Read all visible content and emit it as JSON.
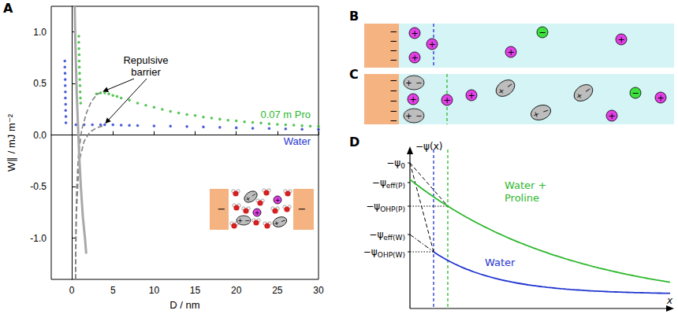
{
  "chart_data": {
    "type": "scatter",
    "xlabel": "D / nm",
    "ylabel": "W∥ / mJ m⁻²",
    "xlim": [
      -2.5,
      30
    ],
    "xticks": [
      0,
      5,
      10,
      15,
      20,
      25,
      30
    ],
    "ylim": [
      -1.4,
      1.25
    ],
    "yticks": [
      {
        "value": -1,
        "label": "-1.0"
      },
      {
        "value": -0.5,
        "label": "-0.5"
      },
      {
        "value": 0,
        "label": "0.0"
      },
      {
        "value": 0.5,
        "label": "0.5"
      },
      {
        "value": 1,
        "label": "1.0"
      }
    ],
    "grid": false,
    "annotations": [
      "Repulsive barrier"
    ],
    "series": [
      {
        "name": "0.07 m Pro",
        "color": "#2db82d",
        "type": "scatter",
        "marker": "circle",
        "values": [
          [
            0.85,
            0.96
          ],
          [
            0.85,
            0.9
          ],
          [
            0.87,
            0.84
          ],
          [
            0.9,
            0.78
          ],
          [
            0.9,
            0.72
          ],
          [
            0.92,
            0.66
          ],
          [
            0.95,
            0.6
          ],
          [
            0.97,
            0.54
          ],
          [
            1.0,
            0.48
          ],
          [
            1.02,
            0.42
          ],
          [
            1.05,
            0.36
          ],
          [
            1.08,
            0.31
          ],
          [
            3.0,
            0.4
          ],
          [
            3.5,
            0.41
          ],
          [
            4.0,
            0.41
          ],
          [
            4.5,
            0.4
          ],
          [
            5.0,
            0.385
          ],
          [
            5.5,
            0.375
          ],
          [
            6.0,
            0.36
          ],
          [
            7.0,
            0.34
          ],
          [
            8.0,
            0.31
          ],
          [
            9.0,
            0.29
          ],
          [
            10.0,
            0.27
          ],
          [
            11.0,
            0.25
          ],
          [
            12.0,
            0.23
          ],
          [
            13.0,
            0.215
          ],
          [
            14.0,
            0.2
          ],
          [
            15.0,
            0.19
          ],
          [
            16.0,
            0.175
          ],
          [
            17.0,
            0.165
          ],
          [
            18.0,
            0.155
          ],
          [
            19.0,
            0.145
          ],
          [
            20.0,
            0.138
          ],
          [
            21.0,
            0.13
          ],
          [
            22.0,
            0.123
          ],
          [
            23.0,
            0.117
          ],
          [
            24.0,
            0.11
          ],
          [
            25.0,
            0.105
          ],
          [
            26.0,
            0.1
          ],
          [
            27.0,
            0.096
          ],
          [
            28.0,
            0.092
          ],
          [
            29.0,
            0.088
          ],
          [
            30.0,
            0.085
          ]
        ]
      },
      {
        "name": "Water",
        "color": "#1f35d0",
        "type": "scatter",
        "marker": "circle",
        "values": [
          [
            -0.85,
            0.72
          ],
          [
            -0.85,
            0.66
          ],
          [
            -0.82,
            0.6
          ],
          [
            -0.8,
            0.54
          ],
          [
            -0.8,
            0.48
          ],
          [
            -0.78,
            0.42
          ],
          [
            -0.78,
            0.36
          ],
          [
            -0.75,
            0.3
          ],
          [
            -0.75,
            0.24
          ],
          [
            -0.72,
            0.18
          ],
          [
            -0.72,
            0.12
          ],
          [
            0.5,
            0.1
          ],
          [
            1.5,
            0.1
          ],
          [
            2.5,
            0.1
          ],
          [
            3.5,
            0.1
          ],
          [
            4.0,
            0.1
          ],
          [
            5.0,
            0.1
          ],
          [
            6.0,
            0.097
          ],
          [
            7.0,
            0.095
          ],
          [
            8.0,
            0.093
          ],
          [
            10.0,
            0.09
          ],
          [
            12.0,
            0.087
          ],
          [
            14.0,
            0.083
          ],
          [
            16.0,
            0.079
          ],
          [
            18.0,
            0.075
          ],
          [
            20.0,
            0.071
          ],
          [
            22.0,
            0.067
          ],
          [
            24.0,
            0.064
          ],
          [
            26.0,
            0.06
          ],
          [
            28.0,
            0.057
          ],
          [
            30.0,
            0.054
          ]
        ]
      },
      {
        "color": "#808080",
        "type": "line",
        "line_style": "dashed",
        "values": [
          [
            0.45,
            -1.4
          ],
          [
            0.5,
            -0.9
          ],
          [
            0.6,
            -0.5
          ],
          [
            0.8,
            -0.2
          ],
          [
            1.2,
            0.05
          ],
          [
            1.8,
            0.22
          ],
          [
            2.4,
            0.33
          ],
          [
            3.0,
            0.39
          ],
          [
            3.4,
            0.41
          ]
        ]
      },
      {
        "color": "#808080",
        "type": "line",
        "line_style": "dashed",
        "values": [
          [
            0.45,
            -1.4
          ],
          [
            0.55,
            -0.8
          ],
          [
            0.75,
            -0.45
          ],
          [
            1.0,
            -0.22
          ],
          [
            1.5,
            -0.06
          ],
          [
            2.2,
            0.03
          ],
          [
            3.0,
            0.07
          ],
          [
            3.8,
            0.09
          ]
        ]
      },
      {
        "color": "#a8a8a8",
        "type": "line",
        "line_style": "solid",
        "values": [
          [
            0.35,
            1.25
          ],
          [
            0.4,
            1.0
          ],
          [
            0.5,
            0.7
          ],
          [
            0.6,
            0.4
          ],
          [
            0.75,
            0.1
          ],
          [
            0.9,
            -0.2
          ],
          [
            1.1,
            -0.5
          ],
          [
            1.35,
            -0.8
          ],
          [
            1.6,
            -1.0
          ],
          [
            1.75,
            -1.15
          ]
        ]
      }
    ]
  },
  "panel_letters": [
    "A",
    "B",
    "C",
    "D"
  ],
  "signs": {
    "negative": "−",
    "positive": "+"
  },
  "panel_D": {
    "ylabel": "−ψ(x)",
    "xlabel": "x",
    "levels": [
      {
        "main": "−ψ",
        "sub": "0"
      },
      {
        "main": "−ψ",
        "sub": "eff(P)"
      },
      {
        "main": "−ψ",
        "sub": "OHP(P)"
      },
      {
        "main": "−ψ",
        "sub": "eff(W)"
      },
      {
        "main": "−ψ",
        "sub": "OHP(W)"
      }
    ],
    "curves": [
      "Water + Proline",
      "Water"
    ]
  }
}
